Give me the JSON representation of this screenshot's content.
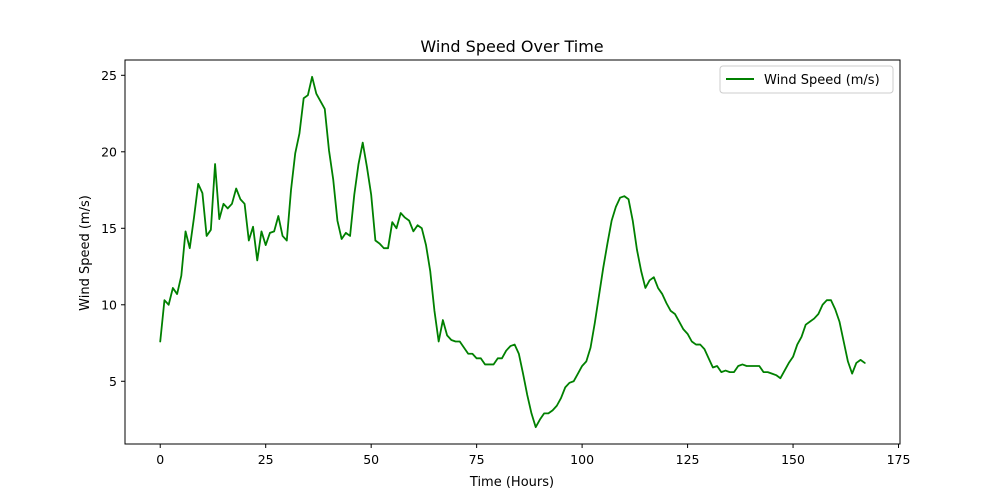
{
  "chart_data": {
    "type": "line",
    "title": "Wind Speed Over Time",
    "xlabel": "Time (Hours)",
    "ylabel": "Wind Speed (m/s)",
    "xlim": [
      -8.35,
      175.35
    ],
    "ylim": [
      0.9,
      26.0
    ],
    "xticks": [
      0,
      25,
      50,
      75,
      100,
      125,
      150,
      175
    ],
    "yticks": [
      5,
      10,
      15,
      20,
      25
    ],
    "grid": false,
    "legend_position": "upper right",
    "series": [
      {
        "name": "Wind Speed (m/s)",
        "color": "#008000",
        "x": [
          0,
          1,
          2,
          3,
          4,
          5,
          6,
          7,
          8,
          9,
          10,
          11,
          12,
          13,
          14,
          15,
          16,
          17,
          18,
          19,
          20,
          21,
          22,
          23,
          24,
          25,
          26,
          27,
          28,
          29,
          30,
          31,
          32,
          33,
          34,
          35,
          36,
          37,
          38,
          39,
          40,
          41,
          42,
          43,
          44,
          45,
          46,
          47,
          48,
          49,
          50,
          51,
          52,
          53,
          54,
          55,
          56,
          57,
          58,
          59,
          60,
          61,
          62,
          63,
          64,
          65,
          66,
          67,
          68,
          69,
          70,
          71,
          72,
          73,
          74,
          75,
          76,
          77,
          78,
          79,
          80,
          81,
          82,
          83,
          84,
          85,
          86,
          87,
          88,
          89,
          90,
          91,
          92,
          93,
          94,
          95,
          96,
          97,
          98,
          99,
          100,
          101,
          102,
          103,
          104,
          105,
          106,
          107,
          108,
          109,
          110,
          111,
          112,
          113,
          114,
          115,
          116,
          117,
          118,
          119,
          120,
          121,
          122,
          123,
          124,
          125,
          126,
          127,
          128,
          129,
          130,
          131,
          132,
          133,
          134,
          135,
          136,
          137,
          138,
          139,
          140,
          141,
          142,
          143,
          144,
          145,
          146,
          147,
          148,
          149,
          150,
          151,
          152,
          153,
          154,
          155,
          156,
          157,
          158,
          159,
          160,
          161,
          162,
          163,
          164,
          165,
          166,
          167
        ],
        "values": [
          7.6,
          10.3,
          10.0,
          11.1,
          10.7,
          11.9,
          14.8,
          13.7,
          15.7,
          17.9,
          17.3,
          14.5,
          14.9,
          19.2,
          15.6,
          16.6,
          16.3,
          16.6,
          17.6,
          16.9,
          16.6,
          14.2,
          15.1,
          12.9,
          14.8,
          13.9,
          14.7,
          14.8,
          15.8,
          14.5,
          14.2,
          17.5,
          19.9,
          21.2,
          23.5,
          23.7,
          24.9,
          23.8,
          23.3,
          22.8,
          20.1,
          18.2,
          15.5,
          14.3,
          14.7,
          14.5,
          17.2,
          19.2,
          20.6,
          19.0,
          17.2,
          14.2,
          14.0,
          13.7,
          13.7,
          15.4,
          15.0,
          16.0,
          15.7,
          15.5,
          14.8,
          15.2,
          15.0,
          13.9,
          12.2,
          9.6,
          7.6,
          9.0,
          8.0,
          7.7,
          7.6,
          7.6,
          7.2,
          6.8,
          6.8,
          6.5,
          6.5,
          6.1,
          6.1,
          6.1,
          6.5,
          6.5,
          7.0,
          7.3,
          7.4,
          6.8,
          5.5,
          4.1,
          2.9,
          2.0,
          2.5,
          2.9,
          2.9,
          3.1,
          3.4,
          3.9,
          4.6,
          4.9,
          5.0,
          5.5,
          6.0,
          6.3,
          7.2,
          8.8,
          10.6,
          12.4,
          14.0,
          15.5,
          16.4,
          17.0,
          17.1,
          16.9,
          15.5,
          13.6,
          12.2,
          11.1,
          11.6,
          11.8,
          11.1,
          10.7,
          10.1,
          9.6,
          9.4,
          8.9,
          8.4,
          8.1,
          7.6,
          7.4,
          7.4,
          7.1,
          6.5,
          5.9,
          6.0,
          5.6,
          5.7,
          5.6,
          5.6,
          6.0,
          6.1,
          6.0,
          6.0,
          6.0,
          6.0,
          5.6,
          5.6,
          5.5,
          5.4,
          5.2,
          5.7,
          6.2,
          6.6,
          7.4,
          7.9,
          8.7,
          8.9,
          9.1,
          9.4,
          10.0,
          10.3,
          10.3,
          9.7,
          8.9,
          7.6,
          6.3,
          5.5,
          6.2,
          6.4,
          6.2
        ]
      }
    ]
  }
}
